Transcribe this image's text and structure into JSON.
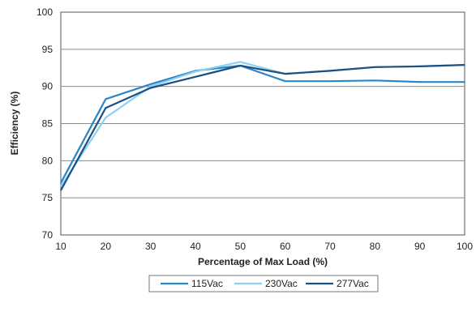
{
  "chart_data": {
    "type": "line",
    "title": "",
    "xlabel": "Percentage of Max Load (%)",
    "ylabel": "Efficiency (%)",
    "x": [
      10,
      20,
      30,
      40,
      50,
      60,
      70,
      80,
      90,
      100
    ],
    "xlim": [
      10,
      100
    ],
    "ylim": [
      70,
      100
    ],
    "xticks": [
      10,
      20,
      30,
      40,
      50,
      60,
      70,
      80,
      90,
      100
    ],
    "yticks": [
      70,
      75,
      80,
      85,
      90,
      95,
      100
    ],
    "grid": "horizontal",
    "legend": "bottom",
    "series": [
      {
        "name": "115Vac",
        "color": "#2a86c8",
        "values": [
          77.0,
          88.3,
          90.3,
          92.1,
          92.8,
          90.7,
          90.7,
          90.8,
          90.6,
          90.6
        ]
      },
      {
        "name": "230Vac",
        "color": "#8fd0f0",
        "values": [
          76.5,
          85.8,
          90.0,
          92.0,
          93.3,
          91.7,
          92.1,
          92.6,
          92.7,
          92.9
        ]
      },
      {
        "name": "277Vac",
        "color": "#1c4f82",
        "values": [
          76.0,
          87.1,
          89.8,
          91.3,
          92.8,
          91.7,
          92.1,
          92.6,
          92.7,
          92.9
        ]
      }
    ]
  }
}
